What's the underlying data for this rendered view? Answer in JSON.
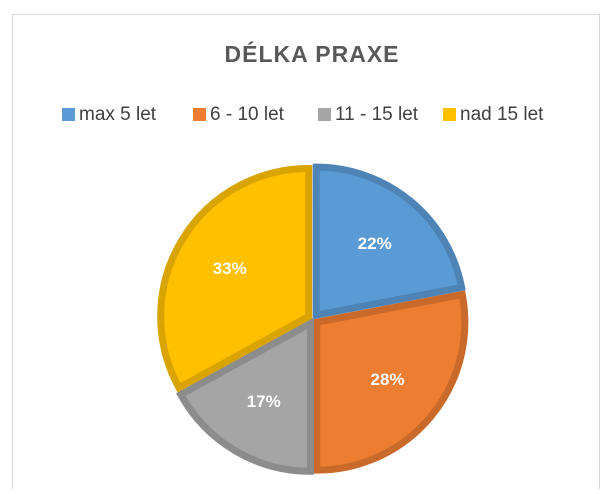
{
  "chart_data": {
    "type": "pie",
    "title": "DÉLKA PRAXE",
    "categories": [
      "max 5 let",
      "6 - 10 let",
      "11 - 15 let",
      "nad 15 let"
    ],
    "values": [
      22,
      28,
      17,
      33
    ],
    "value_labels": [
      "22%",
      "28%",
      "17%",
      "33%"
    ],
    "colors": [
      "#5b9bd5",
      "#ed7d31",
      "#a5a5a5",
      "#ffc000"
    ],
    "legend": "top"
  }
}
